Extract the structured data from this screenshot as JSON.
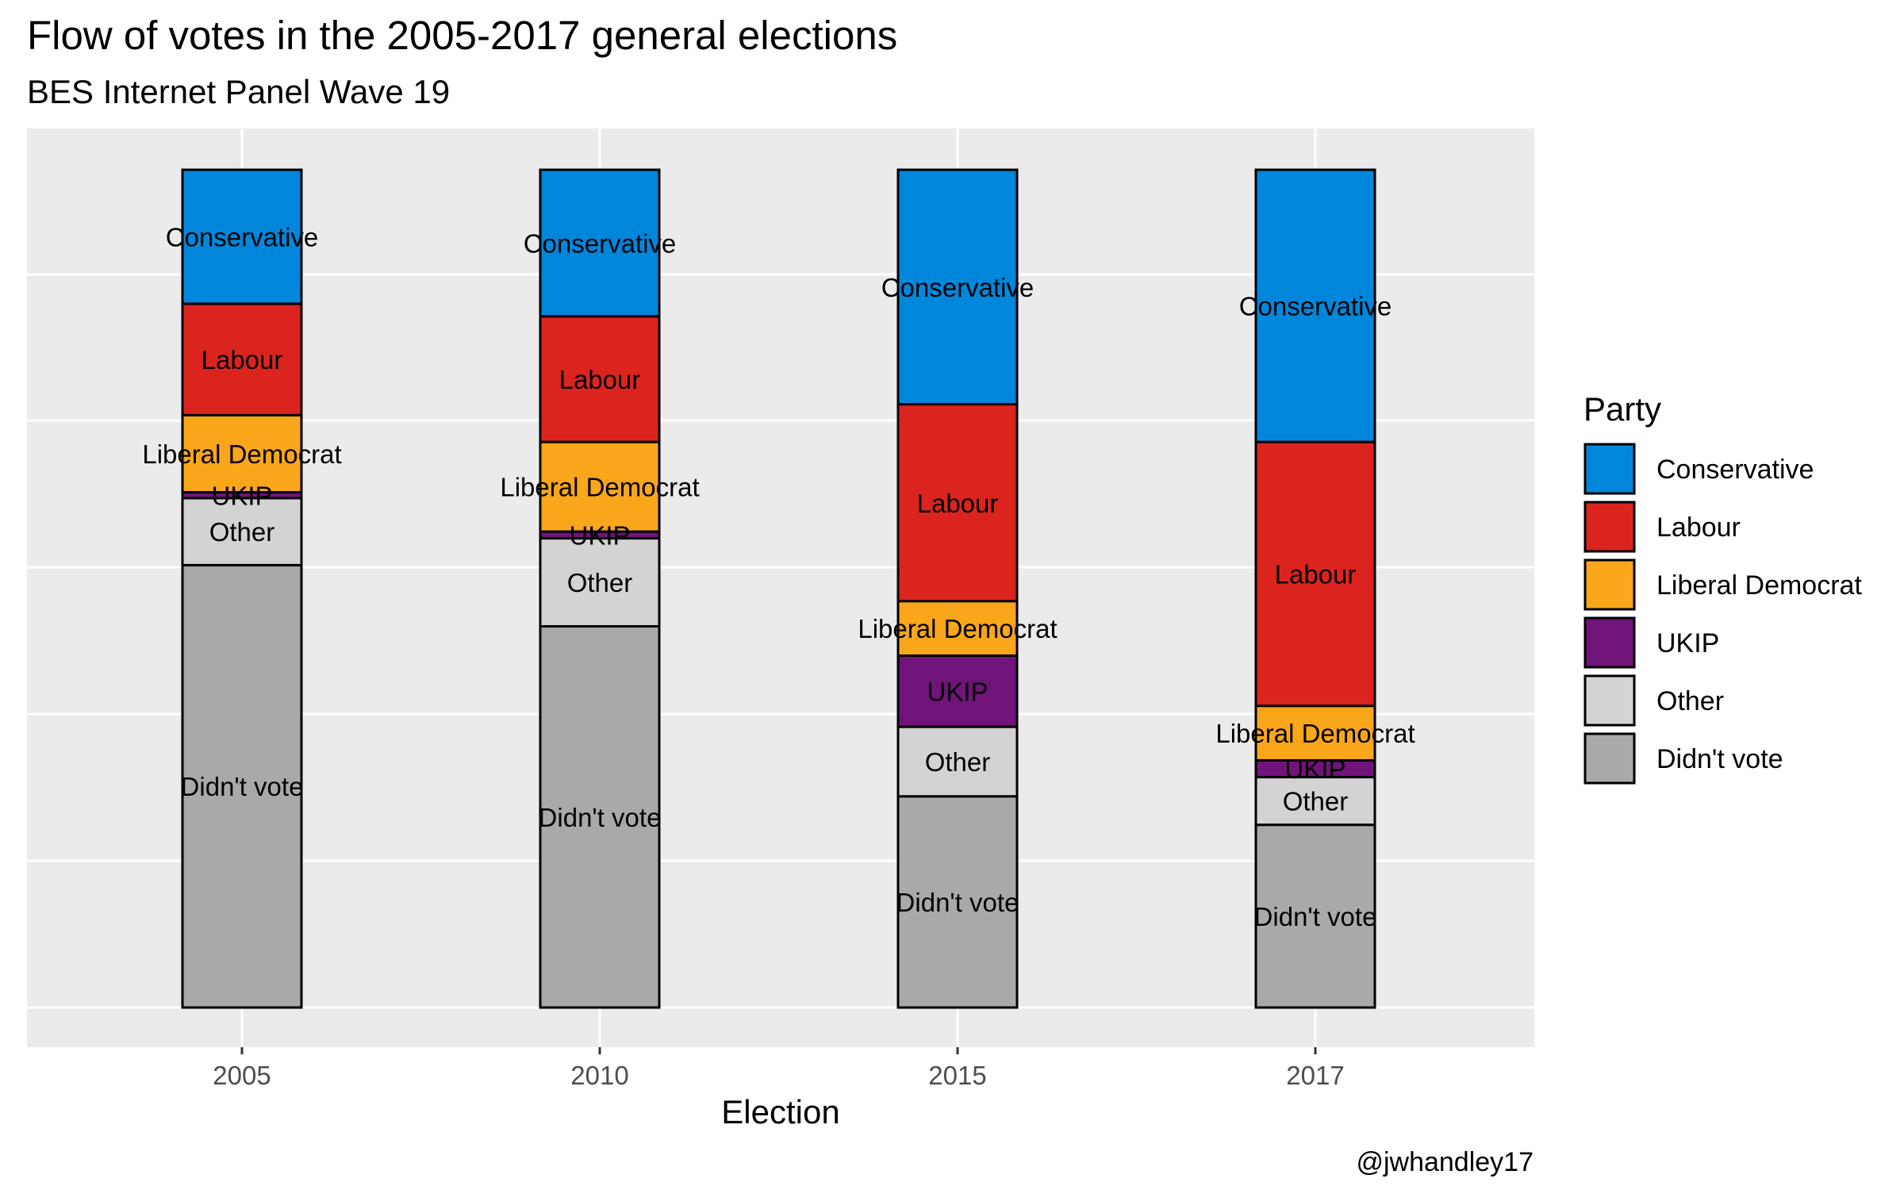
{
  "chart_data": {
    "type": "bar",
    "stacked": true,
    "proportional": true,
    "title": "Flow of votes in the 2005-2017 general elections",
    "subtitle": "BES Internet Panel Wave 19",
    "xlabel": "Election",
    "ylabel": "",
    "caption": "@jwhandley17",
    "legend_title": "Party",
    "legend_position": "right",
    "grid": true,
    "categories": [
      "2005",
      "2010",
      "2015",
      "2017"
    ],
    "series": [
      {
        "name": "Conservative",
        "color": "#0087DC",
        "values": [
          0.16,
          0.175,
          0.28,
          0.325
        ]
      },
      {
        "name": "Labour",
        "color": "#DC241F",
        "values": [
          0.133,
          0.15,
          0.235,
          0.315
        ]
      },
      {
        "name": "Liberal Democrat",
        "color": "#FAA61A",
        "values": [
          0.092,
          0.107,
          0.065,
          0.065
        ]
      },
      {
        "name": "UKIP",
        "color": "#70147A",
        "values": [
          0.007,
          0.008,
          0.085,
          0.02
        ]
      },
      {
        "name": "Other",
        "color": "#D3D3D3",
        "values": [
          0.08,
          0.105,
          0.083,
          0.057
        ]
      },
      {
        "name": "Didn't vote",
        "color": "#A9A9A9",
        "values": [
          0.528,
          0.455,
          0.252,
          0.218
        ]
      }
    ]
  }
}
